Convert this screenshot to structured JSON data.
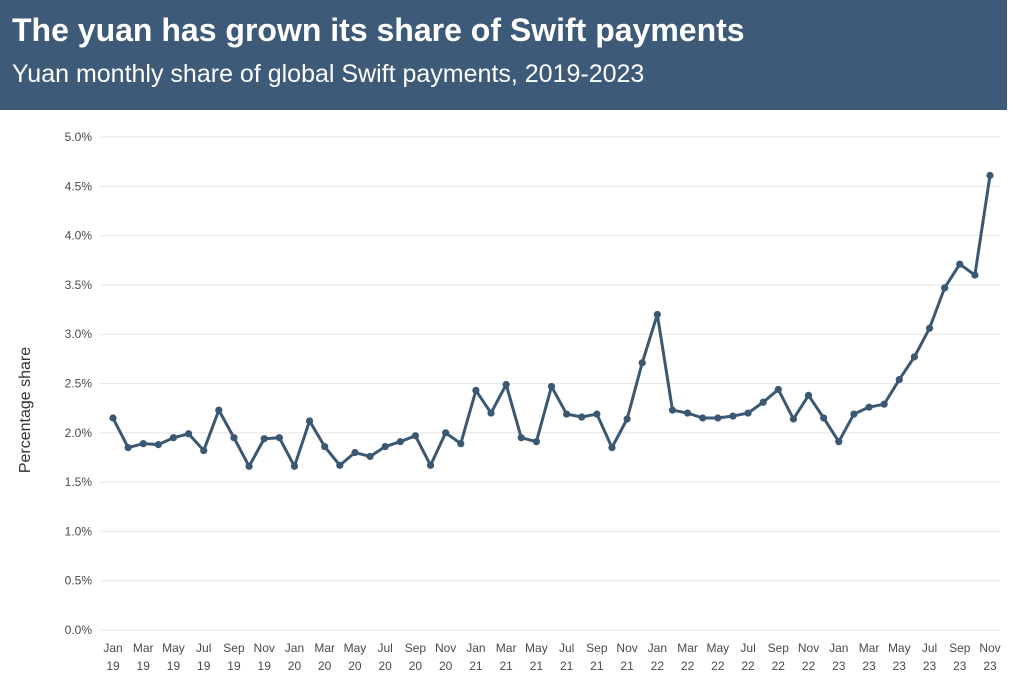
{
  "header": {
    "title": "The yuan has grown its share of Swift payments",
    "subtitle": "Yuan monthly share of global Swift payments, 2019-2023"
  },
  "colors": {
    "header_bg": "#3d5a78",
    "line": "#3b5873",
    "grid": "#e6e6e6",
    "tick_text": "#4a4a4a"
  },
  "chart_data": {
    "type": "line",
    "title": "The yuan has grown its share of Swift payments",
    "subtitle": "Yuan monthly share of global Swift payments, 2019-2023",
    "xlabel": "",
    "ylabel": "Percentage share",
    "ylim": [
      0,
      5.0
    ],
    "yticks": [
      "0.0%",
      "0.5%",
      "1.0%",
      "1.5%",
      "2.0%",
      "2.5%",
      "3.0%",
      "3.5%",
      "4.0%",
      "4.5%",
      "5.0%"
    ],
    "grid": true,
    "legend": "none",
    "x_tick_labels": [
      [
        "Jan",
        "19"
      ],
      [
        "Mar",
        "19"
      ],
      [
        "May",
        "19"
      ],
      [
        "Jul",
        "19"
      ],
      [
        "Sep",
        "19"
      ],
      [
        "Nov",
        "19"
      ],
      [
        "Jan",
        "20"
      ],
      [
        "Mar",
        "20"
      ],
      [
        "May",
        "20"
      ],
      [
        "Jul",
        "20"
      ],
      [
        "Sep",
        "20"
      ],
      [
        "Nov",
        "20"
      ],
      [
        "Jan",
        "21"
      ],
      [
        "Mar",
        "21"
      ],
      [
        "May",
        "21"
      ],
      [
        "Jul",
        "21"
      ],
      [
        "Sep",
        "21"
      ],
      [
        "Nov",
        "21"
      ],
      [
        "Jan",
        "22"
      ],
      [
        "Mar",
        "22"
      ],
      [
        "May",
        "22"
      ],
      [
        "Jul",
        "22"
      ],
      [
        "Sep",
        "22"
      ],
      [
        "Nov",
        "22"
      ],
      [
        "Jan",
        "23"
      ],
      [
        "Mar",
        "23"
      ],
      [
        "May",
        "23"
      ],
      [
        "Jul",
        "23"
      ],
      [
        "Sep",
        "23"
      ],
      [
        "Nov",
        "23"
      ]
    ],
    "x": [
      "Jan 19",
      "Feb 19",
      "Mar 19",
      "Apr 19",
      "May 19",
      "Jun 19",
      "Jul 19",
      "Aug 19",
      "Sep 19",
      "Oct 19",
      "Nov 19",
      "Dec 19",
      "Jan 20",
      "Feb 20",
      "Mar 20",
      "Apr 20",
      "May 20",
      "Jun 20",
      "Jul 20",
      "Aug 20",
      "Sep 20",
      "Oct 20",
      "Nov 20",
      "Dec 20",
      "Jan 21",
      "Feb 21",
      "Mar 21",
      "Apr 21",
      "May 21",
      "Jun 21",
      "Jul 21",
      "Aug 21",
      "Sep 21",
      "Oct 21",
      "Nov 21",
      "Dec 21",
      "Jan 22",
      "Feb 22",
      "Mar 22",
      "Apr 22",
      "May 22",
      "Jun 22",
      "Jul 22",
      "Aug 22",
      "Sep 22",
      "Oct 22",
      "Nov 22",
      "Dec 22",
      "Jan 23",
      "Feb 23",
      "Mar 23",
      "Apr 23",
      "May 23",
      "Jun 23",
      "Jul 23",
      "Aug 23",
      "Sep 23",
      "Oct 23",
      "Nov 23"
    ],
    "series": [
      {
        "values": [
          2.15,
          1.85,
          1.89,
          1.88,
          1.95,
          1.99,
          1.82,
          2.23,
          1.95,
          1.66,
          1.94,
          1.95,
          1.66,
          2.12,
          1.86,
          1.67,
          1.8,
          1.76,
          1.86,
          1.91,
          1.97,
          1.67,
          2.0,
          1.89,
          2.43,
          2.2,
          2.49,
          1.95,
          1.91,
          2.47,
          2.19,
          2.16,
          2.19,
          1.85,
          2.14,
          2.71,
          3.2,
          2.23,
          2.2,
          2.15,
          2.15,
          2.17,
          2.2,
          2.31,
          2.44,
          2.14,
          2.38,
          2.15,
          1.91,
          2.19,
          2.26,
          2.29,
          2.54,
          2.77,
          3.06,
          3.47,
          3.71,
          3.6,
          4.61
        ]
      }
    ]
  }
}
